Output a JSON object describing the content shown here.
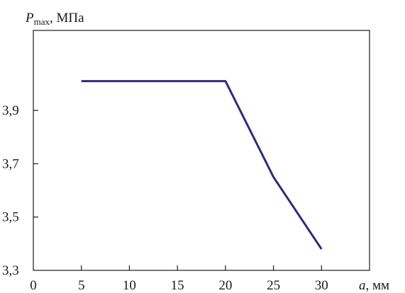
{
  "chart_data": {
    "type": "line",
    "ylabel": {
      "symbol": "P",
      "subscript": "max",
      "unit": ", МПа"
    },
    "xlabel": {
      "symbol": "a",
      "unit": ", мм"
    },
    "xlim": [
      0,
      35
    ],
    "ylim": [
      3.3,
      4.2
    ],
    "x_ticks": [
      0,
      5,
      10,
      15,
      20,
      25,
      30
    ],
    "x_tick_labels": [
      "0",
      "5",
      "10",
      "15",
      "20",
      "25",
      "30"
    ],
    "y_ticks": [
      3.3,
      3.5,
      3.7,
      3.9
    ],
    "y_tick_labels": [
      "3,3",
      "3,5",
      "3,7",
      "3,9"
    ],
    "grid": false,
    "line_color": "#2e2d78",
    "series": [
      {
        "x": [
          5,
          20,
          25,
          30
        ],
        "y": [
          4.01,
          4.01,
          3.65,
          3.38
        ]
      }
    ]
  }
}
